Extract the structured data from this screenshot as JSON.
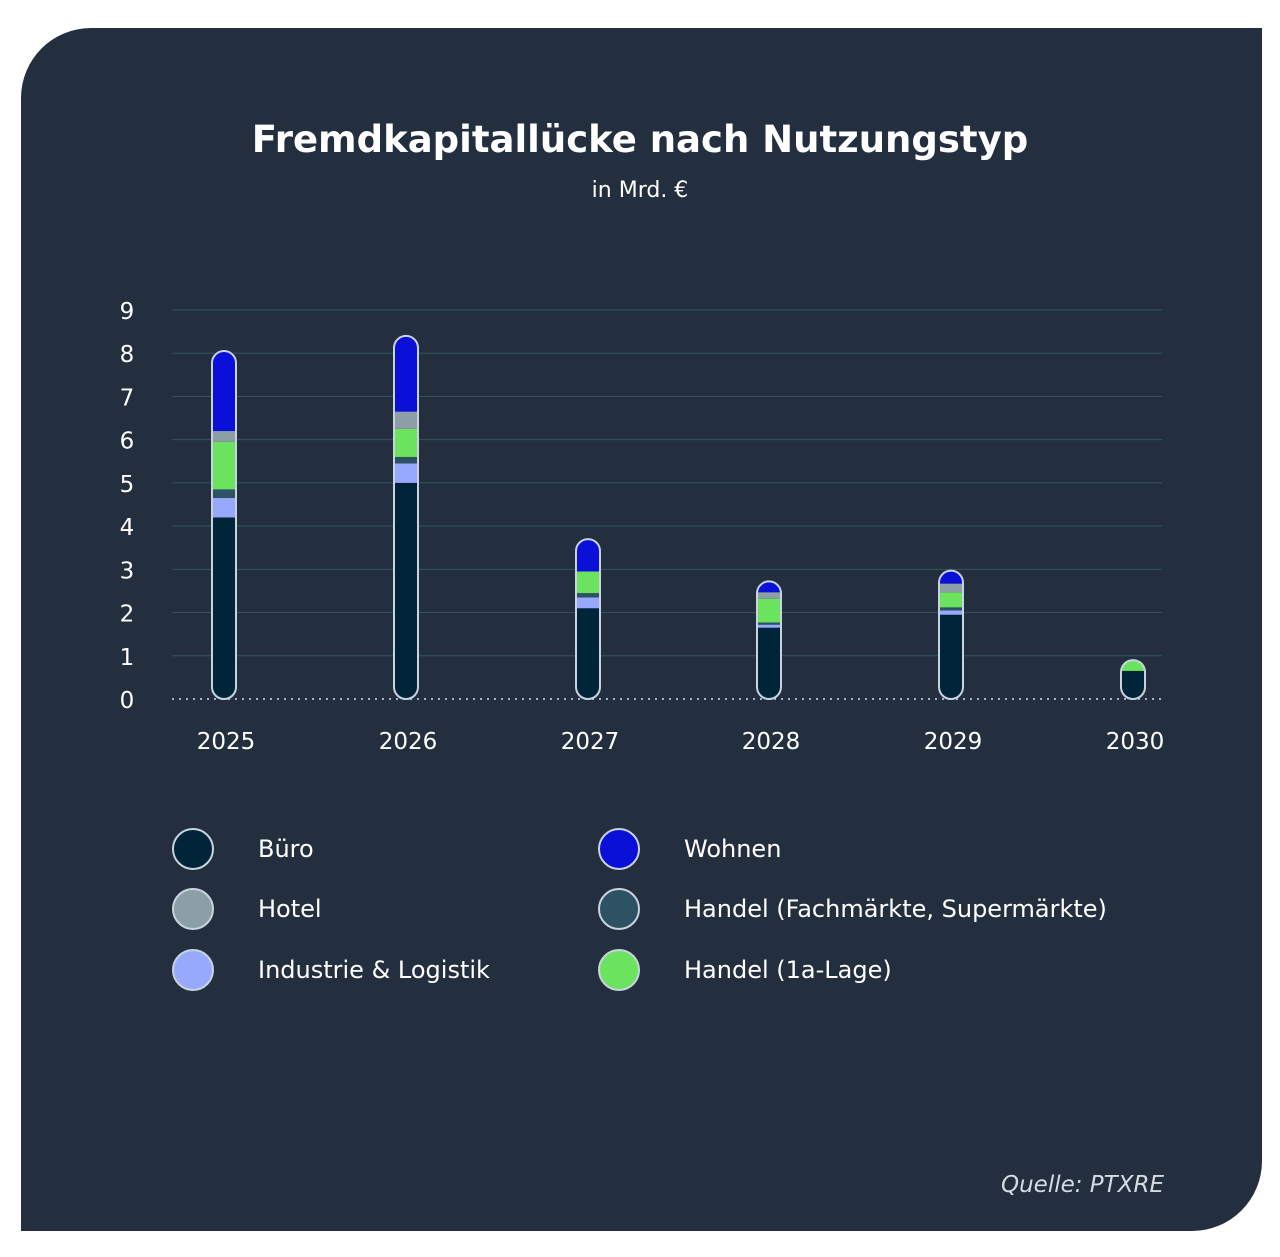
{
  "chart_data": {
    "type": "bar",
    "stacked": true,
    "title": "Fremdkapitallücke nach Nutzungstyp",
    "subtitle": "in Mrd. €",
    "xlabel": "",
    "ylabel": "",
    "ylim": [
      0,
      9
    ],
    "yticks": [
      "0",
      "1",
      "2",
      "3",
      "4",
      "5",
      "6",
      "7",
      "8",
      "9"
    ],
    "categories": [
      "2025",
      "2026",
      "2027",
      "2028",
      "2029",
      "2030"
    ],
    "series": [
      {
        "name": "Büro",
        "color": "#012538",
        "values": [
          4.2,
          5.0,
          2.1,
          1.65,
          1.95,
          0.65
        ]
      },
      {
        "name": "Industrie & Logistik",
        "color": "#97a9fd",
        "values": [
          0.45,
          0.45,
          0.25,
          0.07,
          0.1,
          0
        ]
      },
      {
        "name": "Handel (Fachmärkte, Supermärkte)",
        "color": "#2d5264",
        "values": [
          0.2,
          0.15,
          0.1,
          0.05,
          0.07,
          0
        ]
      },
      {
        "name": "Handel (1a-Lage)",
        "color": "#6be35f",
        "values": [
          1.1,
          0.65,
          0.5,
          0.55,
          0.35,
          0.25
        ]
      },
      {
        "name": "Hotel",
        "color": "#8c9ea6",
        "values": [
          0.25,
          0.4,
          0,
          0.15,
          0.2,
          0
        ]
      },
      {
        "name": "Wohnen",
        "color": "#0a10d8",
        "values": [
          1.85,
          1.75,
          0.75,
          0.25,
          0.3,
          0
        ]
      }
    ],
    "legend": {
      "position": "bottom",
      "order": [
        "Büro",
        "Wohnen",
        "Hotel",
        "Handel (Fachmärkte, Supermärkte)",
        "Industrie & Logistik",
        "Handel (1a-Lage)"
      ]
    },
    "grid": true,
    "source": "Quelle: PTXRE"
  }
}
